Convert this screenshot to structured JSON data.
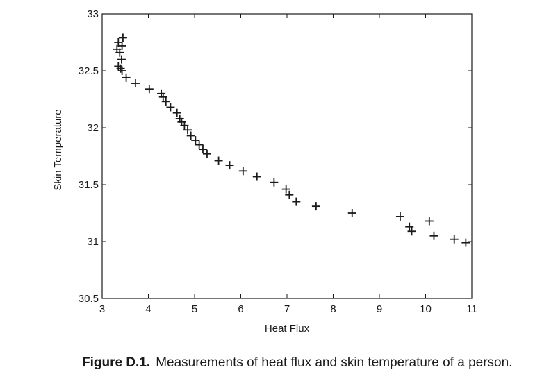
{
  "chart_data": {
    "type": "scatter",
    "xlabel": "Heat Flux",
    "ylabel": "Skin Temperature",
    "xlim": [
      3,
      11
    ],
    "ylim": [
      30.5,
      33
    ],
    "xticks": [
      3,
      4,
      5,
      6,
      7,
      8,
      9,
      10,
      11
    ],
    "yticks": [
      30.5,
      31,
      31.5,
      32,
      32.5,
      33
    ],
    "grid": false,
    "marker": "+",
    "marker_color": "#1a1a1a",
    "series": [
      {
        "x": [
          3.45,
          3.35,
          3.43,
          3.32,
          3.38,
          3.42,
          3.35,
          3.4,
          3.43,
          3.52,
          3.72,
          4.02,
          4.28,
          4.32,
          4.38,
          4.48,
          4.62,
          4.68,
          4.72,
          4.78,
          4.85,
          4.92,
          5.02,
          5.1,
          5.18,
          5.27,
          5.52,
          5.76,
          6.05,
          6.35,
          6.72,
          6.98,
          7.05,
          7.2,
          7.63,
          8.41,
          9.45,
          9.65,
          9.7,
          10.08,
          10.18,
          10.62,
          10.87
        ],
        "y": [
          32.79,
          32.75,
          32.72,
          32.69,
          32.66,
          32.6,
          32.54,
          32.52,
          32.5,
          32.44,
          32.39,
          32.34,
          32.3,
          32.27,
          32.23,
          32.18,
          32.13,
          32.08,
          32.05,
          32.02,
          31.98,
          31.93,
          31.89,
          31.85,
          31.81,
          31.77,
          31.71,
          31.67,
          31.62,
          31.57,
          31.52,
          31.46,
          31.41,
          31.35,
          31.31,
          31.25,
          31.22,
          31.13,
          31.09,
          31.18,
          31.05,
          31.02,
          30.99
        ]
      }
    ]
  },
  "caption": {
    "number": "Figure D.1.",
    "text": "Measurements of heat flux and skin temperature of a person."
  }
}
